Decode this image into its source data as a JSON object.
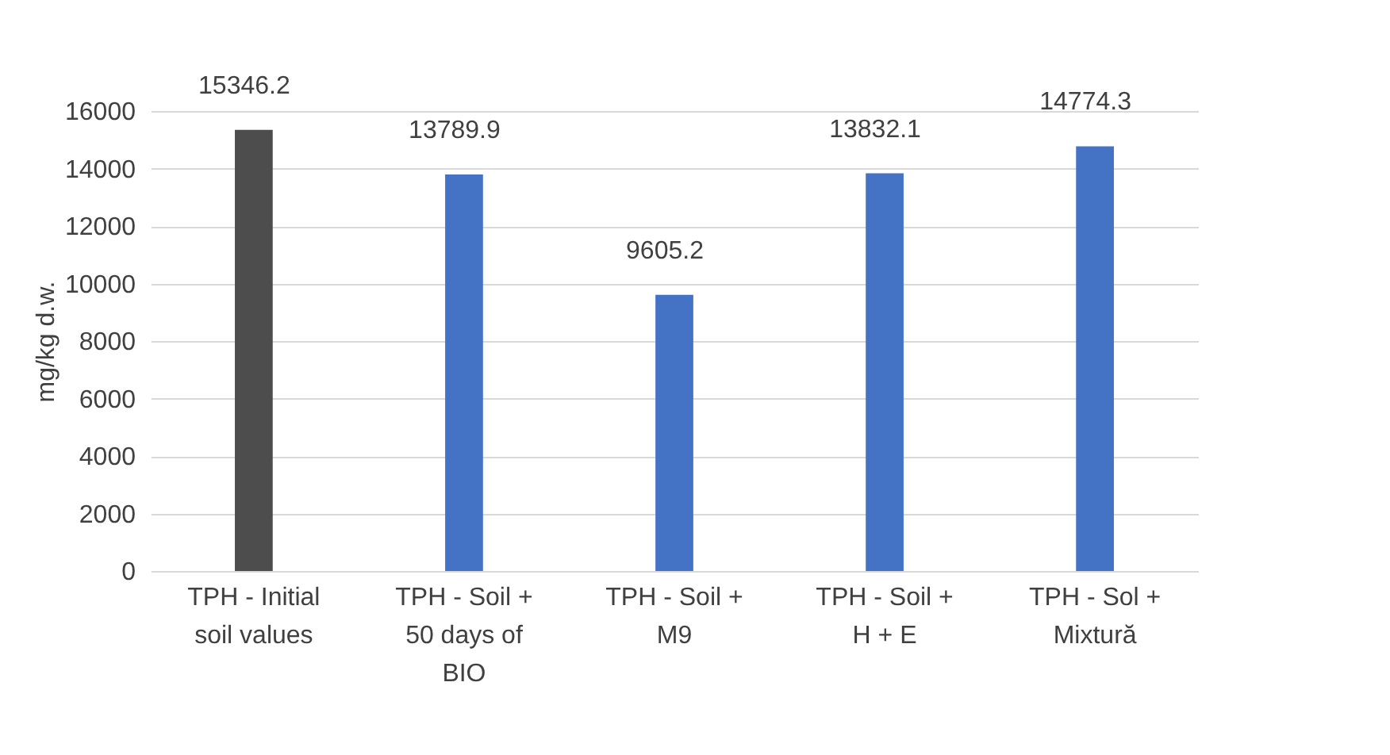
{
  "chart_data": {
    "type": "bar",
    "ylabel": "mg/kg d.w.",
    "categories": [
      "TPH - Initial soil values",
      "TPH - Soil + 50 days of BIO",
      "TPH - Soil + M9",
      "TPH - Soil + H + E",
      "TPH - Sol + Mixtură"
    ],
    "values": [
      15346.2,
      13789.9,
      9605.2,
      13832.1,
      14774.3
    ],
    "colors": [
      "#4d4d4d",
      "#4472c4",
      "#4472c4",
      "#4472c4",
      "#4472c4"
    ],
    "ylim": [
      0,
      16000
    ],
    "yticks": [
      0,
      2000,
      4000,
      6000,
      8000,
      10000,
      12000,
      14000,
      16000
    ],
    "grid": "y",
    "data_labels": true
  }
}
